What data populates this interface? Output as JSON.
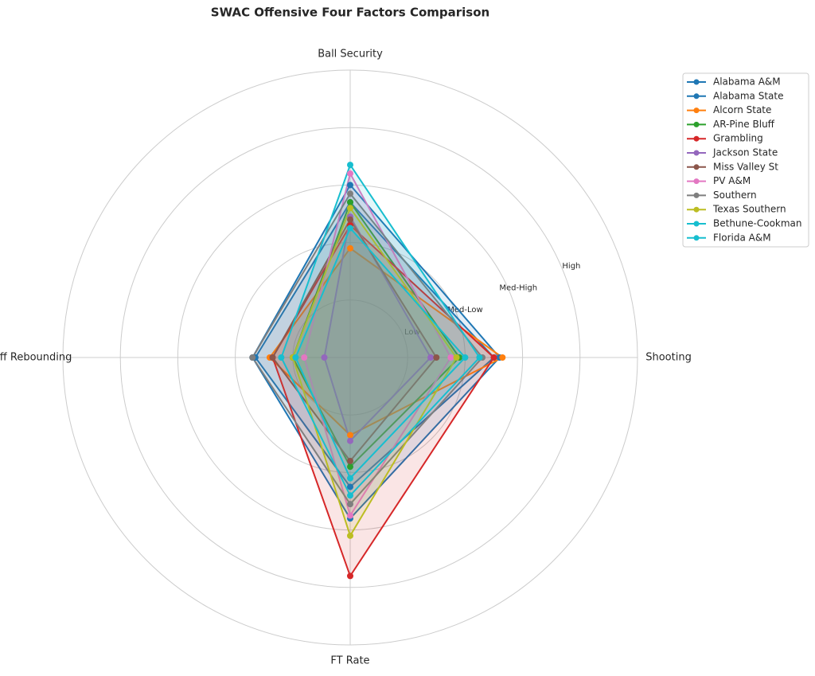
{
  "chart_data": {
    "type": "radar",
    "title": "SWAC Offensive Four Factors Comparison",
    "categories": [
      "Shooting",
      "Ball Security",
      "Off Rebounding",
      "FT Rate"
    ],
    "ylim": [
      0,
      5
    ],
    "yticks": [
      {
        "value": 1,
        "label": "Low"
      },
      {
        "value": 2,
        "label": "Med-Low"
      },
      {
        "value": 3,
        "label": "Med-High"
      },
      {
        "value": 4,
        "label": "High"
      }
    ],
    "grid": true,
    "legend": "upper right",
    "series": [
      {
        "name": "Alabama A&M",
        "color": "#1f77b4",
        "values": [
          2.6,
          3.0,
          1.7,
          2.8
        ]
      },
      {
        "name": "Alabama State",
        "color": "#1f77b4",
        "values": [
          2.5,
          2.7,
          1.65,
          2.25
        ]
      },
      {
        "name": "Alcorn State",
        "color": "#ff7f0e",
        "values": [
          2.65,
          1.9,
          1.4,
          1.35
        ]
      },
      {
        "name": "AR-Pine Bluff",
        "color": "#2ca02c",
        "values": [
          1.9,
          2.7,
          1.0,
          1.9
        ]
      },
      {
        "name": "Grambling",
        "color": "#d62728",
        "values": [
          2.5,
          2.3,
          1.35,
          3.8
        ]
      },
      {
        "name": "Jackson State",
        "color": "#9467bd",
        "values": [
          1.4,
          2.45,
          0.45,
          1.45
        ]
      },
      {
        "name": "Miss Valley St",
        "color": "#8c564b",
        "values": [
          1.5,
          2.4,
          1.35,
          1.8
        ]
      },
      {
        "name": "PV A&M",
        "color": "#e377c2",
        "values": [
          1.75,
          3.2,
          0.8,
          2.75
        ]
      },
      {
        "name": "Southern",
        "color": "#7f7f7f",
        "values": [
          2.3,
          2.85,
          1.7,
          2.55
        ]
      },
      {
        "name": "Texas Southern",
        "color": "#bcbd22",
        "values": [
          1.85,
          2.6,
          1.0,
          3.1
        ]
      },
      {
        "name": "Bethune-Cookman",
        "color": "#17becf",
        "values": [
          2.25,
          3.35,
          1.2,
          2.4
        ]
      },
      {
        "name": "Florida A&M",
        "color": "#17becf",
        "values": [
          2.0,
          2.25,
          0.95,
          2.1
        ]
      }
    ]
  }
}
